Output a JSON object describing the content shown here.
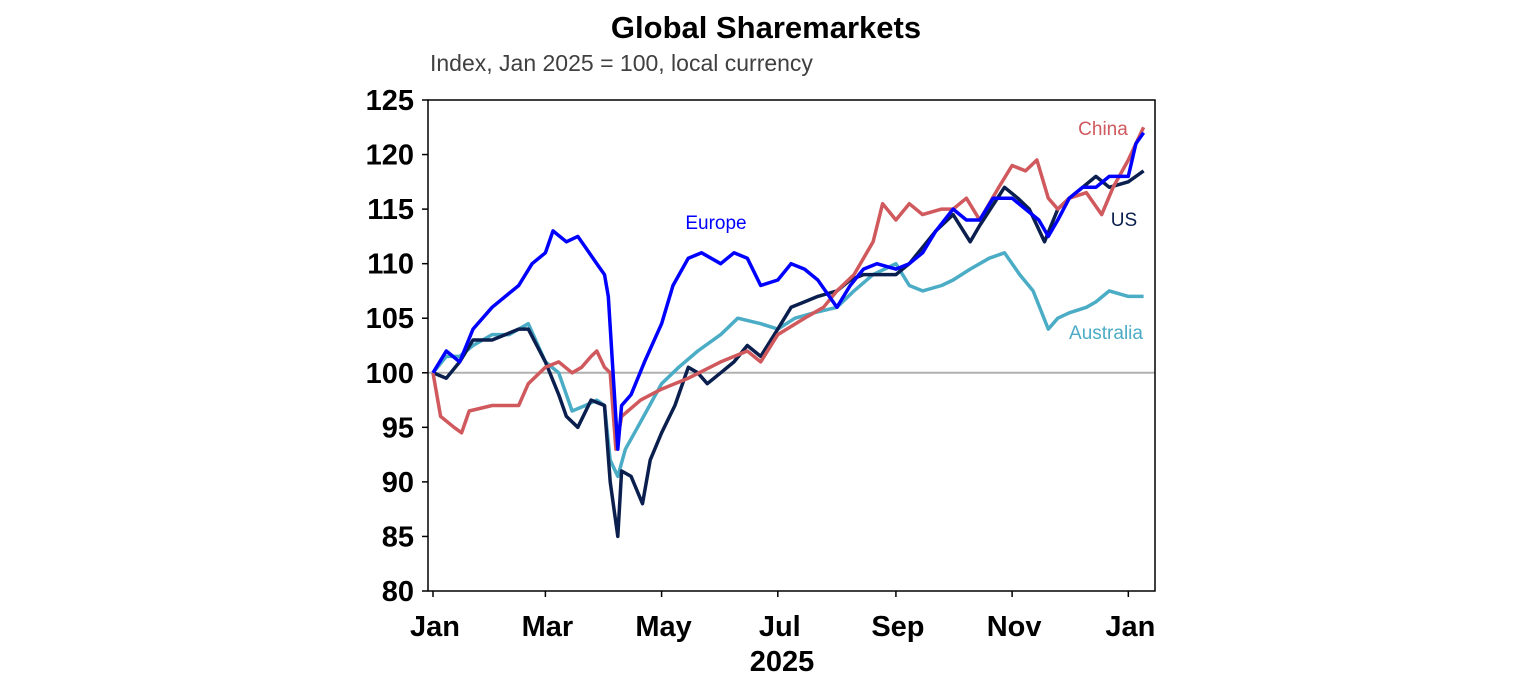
{
  "chart_data": {
    "type": "line",
    "title": "Global Sharemarkets",
    "subtitle": "Index, Jan 2025 = 100, local currency",
    "xlabel": "2025",
    "ylabel": "",
    "ylim": [
      80,
      125
    ],
    "yticks": [
      "125",
      "120",
      "115",
      "110",
      "105",
      "100",
      "95",
      "90",
      "85",
      "80"
    ],
    "xlim": [
      "2025-01-01",
      "2026-01-12"
    ],
    "xticks": [
      {
        "label": "Jan",
        "date": "2025-01-01"
      },
      {
        "label": "Mar",
        "date": "2025-03-01"
      },
      {
        "label": "May",
        "date": "2025-05-01"
      },
      {
        "label": "Jul",
        "date": "2025-07-01"
      },
      {
        "label": "Sep",
        "date": "2025-09-01"
      },
      {
        "label": "Nov",
        "date": "2025-11-01"
      },
      {
        "label": "Jan",
        "date": "2026-01-01"
      }
    ],
    "reference_line": 100,
    "grid": false,
    "series": [
      {
        "name": "Australia",
        "color": "#4BACC6",
        "points": [
          [
            "2025-01-01",
            100
          ],
          [
            "2025-01-08",
            101.5
          ],
          [
            "2025-01-15",
            101.5
          ],
          [
            "2025-01-22",
            102.5
          ],
          [
            "2025-02-01",
            103.5
          ],
          [
            "2025-02-10",
            103.5
          ],
          [
            "2025-02-15",
            104
          ],
          [
            "2025-02-20",
            104.5
          ],
          [
            "2025-03-01",
            101
          ],
          [
            "2025-03-08",
            100
          ],
          [
            "2025-03-15",
            96.5
          ],
          [
            "2025-03-22",
            97
          ],
          [
            "2025-03-28",
            97.5
          ],
          [
            "2025-04-01",
            97
          ],
          [
            "2025-04-04",
            92
          ],
          [
            "2025-04-08",
            90.5
          ],
          [
            "2025-04-12",
            93
          ],
          [
            "2025-04-20",
            95.5
          ],
          [
            "2025-05-01",
            99
          ],
          [
            "2025-05-10",
            100.5
          ],
          [
            "2025-05-20",
            102
          ],
          [
            "2025-06-01",
            103.5
          ],
          [
            "2025-06-10",
            105
          ],
          [
            "2025-06-22",
            104.5
          ],
          [
            "2025-07-01",
            104
          ],
          [
            "2025-07-10",
            105
          ],
          [
            "2025-07-20",
            105.5
          ],
          [
            "2025-08-01",
            106
          ],
          [
            "2025-08-10",
            107.5
          ],
          [
            "2025-08-20",
            109
          ],
          [
            "2025-09-01",
            110
          ],
          [
            "2025-09-08",
            108
          ],
          [
            "2025-09-15",
            107.5
          ],
          [
            "2025-09-25",
            108
          ],
          [
            "2025-10-01",
            108.5
          ],
          [
            "2025-10-10",
            109.5
          ],
          [
            "2025-10-20",
            110.5
          ],
          [
            "2025-10-28",
            111
          ],
          [
            "2025-11-05",
            109
          ],
          [
            "2025-11-12",
            107.5
          ],
          [
            "2025-11-20",
            104
          ],
          [
            "2025-11-25",
            105
          ],
          [
            "2025-12-01",
            105.5
          ],
          [
            "2025-12-10",
            106
          ],
          [
            "2025-12-15",
            106.5
          ],
          [
            "2025-12-22",
            107.5
          ],
          [
            "2026-01-01",
            107
          ],
          [
            "2026-01-09",
            107
          ]
        ]
      },
      {
        "name": "US",
        "color": "#0B1F4F",
        "points": [
          [
            "2025-01-01",
            100
          ],
          [
            "2025-01-08",
            99.5
          ],
          [
            "2025-01-15",
            101
          ],
          [
            "2025-01-22",
            103
          ],
          [
            "2025-02-01",
            103
          ],
          [
            "2025-02-08",
            103.5
          ],
          [
            "2025-02-15",
            104
          ],
          [
            "2025-02-20",
            104
          ],
          [
            "2025-03-01",
            101
          ],
          [
            "2025-03-08",
            98
          ],
          [
            "2025-03-12",
            96
          ],
          [
            "2025-03-18",
            95
          ],
          [
            "2025-03-25",
            97.5
          ],
          [
            "2025-04-01",
            97
          ],
          [
            "2025-04-04",
            90
          ],
          [
            "2025-04-08",
            85
          ],
          [
            "2025-04-10",
            91
          ],
          [
            "2025-04-15",
            90.5
          ],
          [
            "2025-04-21",
            88
          ],
          [
            "2025-04-25",
            92
          ],
          [
            "2025-05-01",
            94.5
          ],
          [
            "2025-05-08",
            97
          ],
          [
            "2025-05-15",
            100.5
          ],
          [
            "2025-05-20",
            100
          ],
          [
            "2025-05-25",
            99
          ],
          [
            "2025-06-01",
            100
          ],
          [
            "2025-06-08",
            101
          ],
          [
            "2025-06-15",
            102.5
          ],
          [
            "2025-06-22",
            101.5
          ],
          [
            "2025-07-01",
            104
          ],
          [
            "2025-07-08",
            106
          ],
          [
            "2025-07-15",
            106.5
          ],
          [
            "2025-07-22",
            107
          ],
          [
            "2025-08-01",
            107.5
          ],
          [
            "2025-08-08",
            108.5
          ],
          [
            "2025-08-15",
            109
          ],
          [
            "2025-08-22",
            109
          ],
          [
            "2025-09-01",
            109
          ],
          [
            "2025-09-08",
            110
          ],
          [
            "2025-09-15",
            111.5
          ],
          [
            "2025-09-22",
            113
          ],
          [
            "2025-10-01",
            114.5
          ],
          [
            "2025-10-10",
            112
          ],
          [
            "2025-10-15",
            113.5
          ],
          [
            "2025-10-28",
            117
          ],
          [
            "2025-11-04",
            116
          ],
          [
            "2025-11-10",
            115
          ],
          [
            "2025-11-18",
            112
          ],
          [
            "2025-11-25",
            115
          ],
          [
            "2025-12-01",
            116
          ],
          [
            "2025-12-08",
            117
          ],
          [
            "2025-12-15",
            118
          ],
          [
            "2025-12-22",
            117
          ],
          [
            "2026-01-01",
            117.5
          ],
          [
            "2026-01-09",
            118.5
          ]
        ]
      },
      {
        "name": "China",
        "color": "#D0595D",
        "points": [
          [
            "2025-01-01",
            100
          ],
          [
            "2025-01-05",
            96
          ],
          [
            "2025-01-12",
            95
          ],
          [
            "2025-01-16",
            94.5
          ],
          [
            "2025-01-20",
            96.5
          ],
          [
            "2025-02-01",
            97
          ],
          [
            "2025-02-15",
            97
          ],
          [
            "2025-02-20",
            99
          ],
          [
            "2025-03-01",
            100.5
          ],
          [
            "2025-03-08",
            101
          ],
          [
            "2025-03-15",
            100
          ],
          [
            "2025-03-20",
            100.5
          ],
          [
            "2025-03-25",
            101.5
          ],
          [
            "2025-03-28",
            102
          ],
          [
            "2025-04-01",
            100.5
          ],
          [
            "2025-04-04",
            100
          ],
          [
            "2025-04-07",
            93
          ],
          [
            "2025-04-10",
            96
          ],
          [
            "2025-04-20",
            97.5
          ],
          [
            "2025-05-01",
            98.5
          ],
          [
            "2025-05-15",
            99.5
          ],
          [
            "2025-06-01",
            101
          ],
          [
            "2025-06-15",
            102
          ],
          [
            "2025-06-22",
            101
          ],
          [
            "2025-07-01",
            103.5
          ],
          [
            "2025-07-15",
            105
          ],
          [
            "2025-07-25",
            106
          ],
          [
            "2025-08-01",
            107.5
          ],
          [
            "2025-08-10",
            109
          ],
          [
            "2025-08-20",
            112
          ],
          [
            "2025-08-25",
            115.5
          ],
          [
            "2025-09-01",
            114
          ],
          [
            "2025-09-08",
            115.5
          ],
          [
            "2025-09-15",
            114.5
          ],
          [
            "2025-09-25",
            115
          ],
          [
            "2025-10-01",
            115
          ],
          [
            "2025-10-08",
            116
          ],
          [
            "2025-10-15",
            114
          ],
          [
            "2025-10-25",
            117
          ],
          [
            "2025-11-01",
            119
          ],
          [
            "2025-11-08",
            118.5
          ],
          [
            "2025-11-14",
            119.5
          ],
          [
            "2025-11-20",
            116
          ],
          [
            "2025-11-25",
            115
          ],
          [
            "2025-12-01",
            116
          ],
          [
            "2025-12-10",
            116.5
          ],
          [
            "2025-12-18",
            114.5
          ],
          [
            "2025-12-24",
            117
          ],
          [
            "2026-01-01",
            119.5
          ],
          [
            "2026-01-05",
            121
          ],
          [
            "2026-01-09",
            122.5
          ]
        ]
      },
      {
        "name": "Europe",
        "color": "#0000FF",
        "points": [
          [
            "2025-01-01",
            100
          ],
          [
            "2025-01-08",
            102
          ],
          [
            "2025-01-15",
            101
          ],
          [
            "2025-01-22",
            104
          ],
          [
            "2025-02-01",
            106
          ],
          [
            "2025-02-08",
            107
          ],
          [
            "2025-02-15",
            108
          ],
          [
            "2025-02-22",
            110
          ],
          [
            "2025-03-01",
            111
          ],
          [
            "2025-03-05",
            113
          ],
          [
            "2025-03-12",
            112
          ],
          [
            "2025-03-18",
            112.5
          ],
          [
            "2025-03-22",
            111.5
          ],
          [
            "2025-03-28",
            110
          ],
          [
            "2025-04-01",
            109
          ],
          [
            "2025-04-03",
            107
          ],
          [
            "2025-04-08",
            93
          ],
          [
            "2025-04-10",
            97
          ],
          [
            "2025-04-15",
            98
          ],
          [
            "2025-04-22",
            101
          ],
          [
            "2025-05-01",
            104.5
          ],
          [
            "2025-05-07",
            108
          ],
          [
            "2025-05-15",
            110.5
          ],
          [
            "2025-05-22",
            111
          ],
          [
            "2025-06-01",
            110
          ],
          [
            "2025-06-08",
            111
          ],
          [
            "2025-06-15",
            110.5
          ],
          [
            "2025-06-22",
            108
          ],
          [
            "2025-07-01",
            108.5
          ],
          [
            "2025-07-08",
            110
          ],
          [
            "2025-07-15",
            109.5
          ],
          [
            "2025-07-22",
            108.5
          ],
          [
            "2025-08-01",
            106
          ],
          [
            "2025-08-08",
            108
          ],
          [
            "2025-08-15",
            109.5
          ],
          [
            "2025-08-22",
            110
          ],
          [
            "2025-09-01",
            109.5
          ],
          [
            "2025-09-08",
            110
          ],
          [
            "2025-09-15",
            111
          ],
          [
            "2025-09-22",
            113
          ],
          [
            "2025-10-01",
            115
          ],
          [
            "2025-10-08",
            114
          ],
          [
            "2025-10-15",
            114
          ],
          [
            "2025-10-22",
            116
          ],
          [
            "2025-11-01",
            116
          ],
          [
            "2025-11-08",
            115
          ],
          [
            "2025-11-15",
            114
          ],
          [
            "2025-11-20",
            112.5
          ],
          [
            "2025-11-25",
            114
          ],
          [
            "2025-12-01",
            116
          ],
          [
            "2025-12-08",
            117
          ],
          [
            "2025-12-15",
            117
          ],
          [
            "2025-12-22",
            118
          ],
          [
            "2026-01-01",
            118
          ],
          [
            "2026-01-05",
            121
          ],
          [
            "2026-01-09",
            122
          ]
        ]
      }
    ],
    "series_labels": [
      {
        "name": "Europe",
        "text": "Europe"
      },
      {
        "name": "China",
        "text": "China"
      },
      {
        "name": "US",
        "text": "US"
      },
      {
        "name": "Australia",
        "text": "Australia"
      }
    ]
  }
}
